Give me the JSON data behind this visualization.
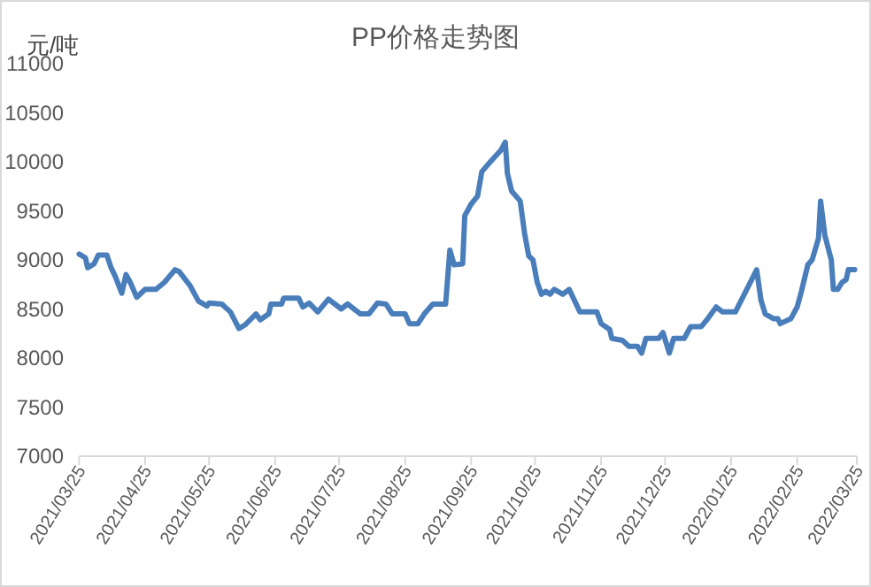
{
  "chart_data": {
    "type": "line",
    "title": "PP价格走势图",
    "ylabel": "元/吨",
    "color": "#4a7ebb",
    "xlim": [
      "2021-03-25",
      "2022-03-25"
    ],
    "xticks": [
      {
        "value": "2021-03-25",
        "label": "2021/03/25"
      },
      {
        "value": "2021-04-25",
        "label": "2021/04/25"
      },
      {
        "value": "2021-05-25",
        "label": "2021/05/25"
      },
      {
        "value": "2021-06-25",
        "label": "2021/06/25"
      },
      {
        "value": "2021-07-25",
        "label": "2021/07/25"
      },
      {
        "value": "2021-08-25",
        "label": "2021/08/25"
      },
      {
        "value": "2021-09-25",
        "label": "2021/09/25"
      },
      {
        "value": "2021-10-25",
        "label": "2021/10/25"
      },
      {
        "value": "2021-11-25",
        "label": "2021/11/25"
      },
      {
        "value": "2021-12-25",
        "label": "2021/12/25"
      },
      {
        "value": "2022-01-25",
        "label": "2022/01/25"
      },
      {
        "value": "2022-02-25",
        "label": "2022/02/25"
      },
      {
        "value": "2022-03-25",
        "label": "2022/03/25"
      }
    ],
    "ylim": [
      7000,
      11000
    ],
    "yticks": [
      7000,
      7500,
      8000,
      8500,
      9000,
      9500,
      10000,
      10500,
      11000
    ],
    "x": [
      "2021-03-25",
      "2021-03-28",
      "2021-03-29",
      "2021-04-01",
      "2021-04-03",
      "2021-04-07",
      "2021-04-09",
      "2021-04-11",
      "2021-04-14",
      "2021-04-16",
      "2021-04-18",
      "2021-04-21",
      "2021-04-25",
      "2021-04-30",
      "2021-05-04",
      "2021-05-09",
      "2021-05-11",
      "2021-05-16",
      "2021-05-20",
      "2021-05-24",
      "2021-05-25",
      "2021-05-31",
      "2021-06-04",
      "2021-06-08",
      "2021-06-11",
      "2021-06-16",
      "2021-06-18",
      "2021-06-22",
      "2021-06-23",
      "2021-06-28",
      "2021-06-29",
      "2021-07-06",
      "2021-07-08",
      "2021-07-11",
      "2021-07-15",
      "2021-07-20",
      "2021-07-26",
      "2021-07-29",
      "2021-08-04",
      "2021-08-08",
      "2021-08-12",
      "2021-08-16",
      "2021-08-19",
      "2021-08-25",
      "2021-08-27",
      "2021-08-31",
      "2021-09-03",
      "2021-09-07",
      "2021-09-13",
      "2021-09-15",
      "2021-09-17",
      "2021-09-21",
      "2021-09-22",
      "2021-09-25",
      "2021-09-28",
      "2021-09-30",
      "2021-10-04",
      "2021-10-09",
      "2021-10-11",
      "2021-10-12",
      "2021-10-14",
      "2021-10-18",
      "2021-10-20",
      "2021-10-22",
      "2021-10-24",
      "2021-10-26",
      "2021-10-28",
      "2021-10-30",
      "2021-11-01",
      "2021-11-03",
      "2021-11-07",
      "2021-11-10",
      "2021-11-15",
      "2021-11-23",
      "2021-11-25",
      "2021-11-29",
      "2021-11-30",
      "2021-12-05",
      "2021-12-08",
      "2021-12-12",
      "2021-12-14",
      "2021-12-16",
      "2021-12-22",
      "2021-12-24",
      "2021-12-27",
      "2021-12-29",
      "2022-01-03",
      "2022-01-06",
      "2022-01-11",
      "2022-01-14",
      "2022-01-18",
      "2022-01-21",
      "2022-01-27",
      "2022-02-06",
      "2022-02-08",
      "2022-02-10",
      "2022-02-14",
      "2022-02-16",
      "2022-02-17",
      "2022-02-22",
      "2022-02-25",
      "2022-02-27",
      "2022-03-02",
      "2022-03-04",
      "2022-03-07",
      "2022-03-08",
      "2022-03-10",
      "2022-03-13",
      "2022-03-14",
      "2022-03-16",
      "2022-03-18",
      "2022-03-20",
      "2022-03-21",
      "2022-03-24"
    ],
    "values": [
      9060,
      9020,
      8920,
      8960,
      9050,
      9050,
      8920,
      8830,
      8660,
      8850,
      8770,
      8620,
      8700,
      8700,
      8770,
      8900,
      8880,
      8740,
      8580,
      8530,
      8560,
      8550,
      8470,
      8300,
      8340,
      8450,
      8390,
      8450,
      8550,
      8550,
      8610,
      8610,
      8520,
      8560,
      8470,
      8600,
      8500,
      8550,
      8450,
      8450,
      8560,
      8550,
      8450,
      8450,
      8350,
      8350,
      8450,
      8550,
      8550,
      9100,
      8950,
      8960,
      9450,
      9570,
      9650,
      9900,
      10000,
      10120,
      10200,
      9880,
      9700,
      9600,
      9280,
      9040,
      9000,
      8770,
      8650,
      8680,
      8650,
      8700,
      8650,
      8700,
      8470,
      8470,
      8350,
      8290,
      8200,
      8180,
      8120,
      8120,
      8050,
      8200,
      8200,
      8260,
      8050,
      8200,
      8200,
      8320,
      8320,
      8400,
      8520,
      8470,
      8470,
      8900,
      8590,
      8450,
      8400,
      8400,
      8350,
      8400,
      8520,
      8680,
      8950,
      9000,
      9220,
      9600,
      9250,
      9000,
      8700,
      8700,
      8770,
      8800,
      8900,
      8900
    ]
  }
}
